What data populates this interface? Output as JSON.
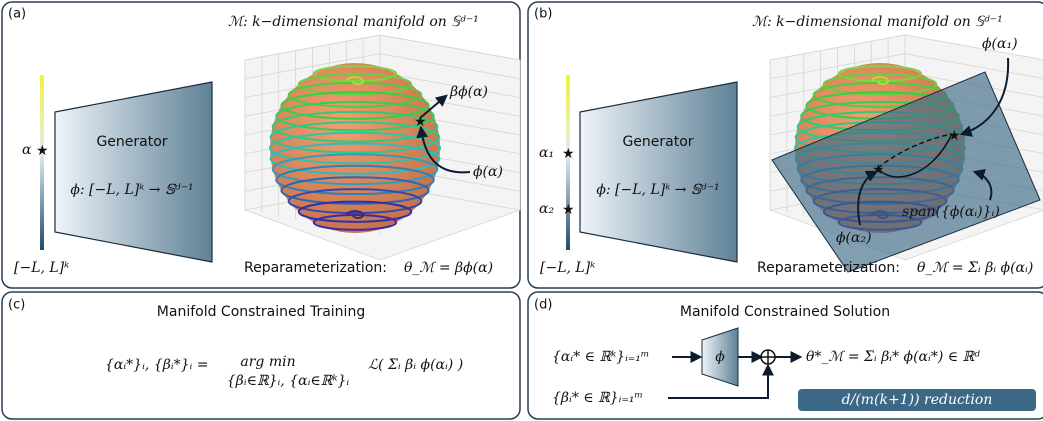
{
  "panel_a": {
    "label": "(a)",
    "alpha": "α",
    "range": "[−L, L]ᵏ",
    "generator": "Generator",
    "mapping": "ϕ: [−L, L]ᵏ → 𝕊ᵈ⁻¹",
    "manifold_title": "ℳ:  k−dimensional manifold on 𝕊ᵈ⁻¹",
    "beta_phi": "βϕ(α)",
    "phi": "ϕ(α)",
    "reparam": "Reparameterization:",
    "theta": "θ_ℳ = βϕ(α)"
  },
  "panel_b": {
    "label": "(b)",
    "alpha1": "α₁",
    "alpha2": "α₂",
    "range": "[−L, L]ᵏ",
    "generator": "Generator",
    "mapping": "ϕ: [−L, L]ᵏ → 𝕊ᵈ⁻¹",
    "manifold_title": "ℳ:  k−dimensional manifold on 𝕊ᵈ⁻¹",
    "phi1": "ϕ(α₁)",
    "phi2": "ϕ(α₂)",
    "span": "span({ϕ(αᵢ)}ᵢ)",
    "reparam": "Reparameterization:",
    "theta": "θ_ℳ = Σᵢ βᵢ ϕ(αᵢ)"
  },
  "panel_c": {
    "label": "(c)",
    "title": "Manifold Constrained Training",
    "lhs": "{αᵢ*}ᵢ, {βᵢ*}ᵢ =",
    "argmin": "arg min",
    "constraint": "{βᵢ∈ℝ}ᵢ, {αᵢ∈ℝᵏ}ᵢ",
    "objective": "ℒ( Σᵢ βᵢ ϕ(αᵢ) )"
  },
  "panel_d": {
    "label": "(d)",
    "title": "Manifold Constrained Solution",
    "alpha_in": "{αᵢ* ∈ ℝᵏ}ᵢ₌₁ᵐ",
    "beta_in": "{βᵢ* ∈ ℝ}ᵢ₌₁ᵐ",
    "phi": "ϕ",
    "solution": "θ*_ℳ = Σᵢ βᵢ* ϕ(αᵢ*) ∈ ℝᵈ",
    "reduction": "d/(m(k+1)) reduction"
  }
}
